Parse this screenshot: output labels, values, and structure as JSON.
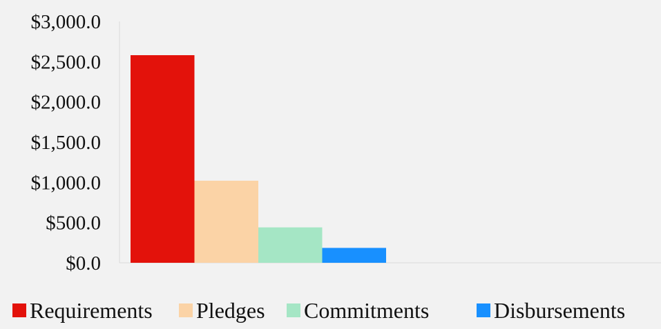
{
  "chart_data": {
    "type": "bar",
    "title": "",
    "xlabel": "",
    "ylabel": "",
    "ylim": [
      0,
      3000
    ],
    "yticks": [
      0,
      500,
      1000,
      1500,
      2000,
      2500,
      3000
    ],
    "ytick_labels": [
      "$0.0",
      "$500.0",
      "$1,000.0",
      "$1,500.0",
      "$2,000.0",
      "$2,500.0",
      "$3,000.0"
    ],
    "grid": false,
    "legend_position": "bottom",
    "series": [
      {
        "name": "Requirements",
        "values": [
          2580
        ],
        "color": "#e3120b"
      },
      {
        "name": "Pledges",
        "values": [
          1020
        ],
        "color": "#fbd3a6"
      },
      {
        "name": "Commitments",
        "values": [
          440
        ],
        "color": "#a5e6c5"
      },
      {
        "name": "Disbursements",
        "values": [
          185
        ],
        "color": "#1890ff"
      }
    ]
  }
}
